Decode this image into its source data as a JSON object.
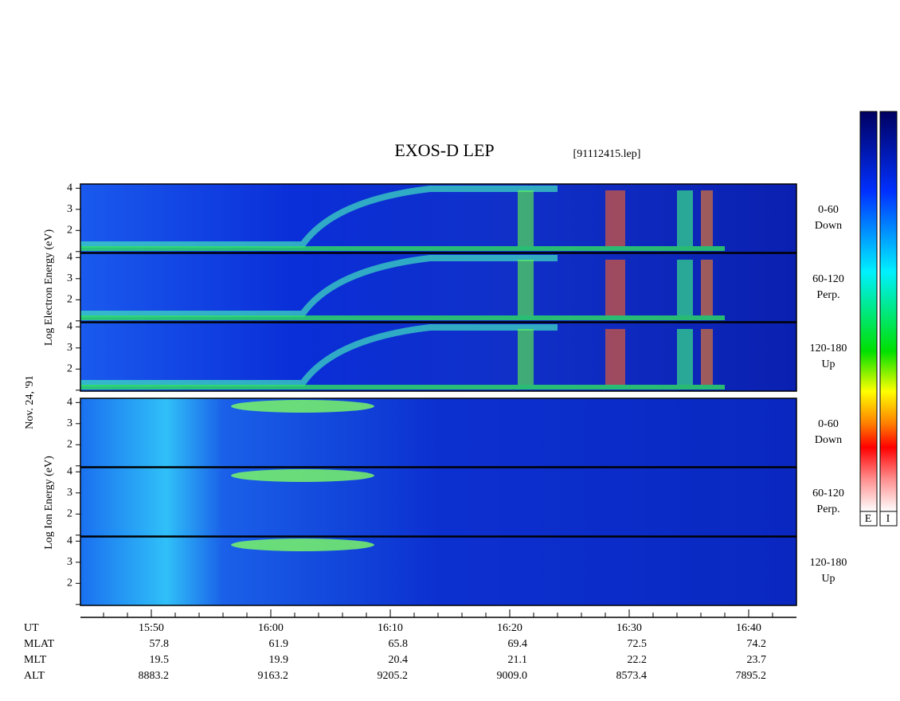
{
  "header": {
    "title": "EXOS-D LEP",
    "file": "[91112415.lep]"
  },
  "left_labels": {
    "electron": "Log Electron Energy (eV)",
    "date": "Nov. 24, '91",
    "ion": "Log Ion Energy (eV)"
  },
  "panels": [
    {
      "species": "electron",
      "angle": "0-60",
      "direction": "Down"
    },
    {
      "species": "electron",
      "angle": "60-120",
      "direction": "Perp."
    },
    {
      "species": "electron",
      "angle": "120-180",
      "direction": "Up"
    },
    {
      "species": "ion",
      "angle": "0-60",
      "direction": "Down"
    },
    {
      "species": "ion",
      "angle": "60-120",
      "direction": "Perp."
    },
    {
      "species": "ion",
      "angle": "120-180",
      "direction": "Up"
    }
  ],
  "yticks": [
    2,
    3,
    4
  ],
  "time_ticks": [
    "15:50",
    "16:00",
    "16:10",
    "16:20",
    "16:30",
    "16:40"
  ],
  "orbit": {
    "labels": [
      "UT",
      "MLAT",
      "MLT",
      "ALT"
    ],
    "rows": [
      [
        "57.8",
        "61.9",
        "65.8",
        "69.4",
        "72.5",
        "74.2"
      ],
      [
        "19.5",
        "19.9",
        "20.4",
        "21.1",
        "22.2",
        "23.7"
      ],
      [
        "8883.2",
        "9163.2",
        "9205.2",
        "9009.0",
        "8573.4",
        "7895.2"
      ]
    ]
  },
  "colorbar": {
    "labels": [
      "E",
      "I"
    ]
  }
}
